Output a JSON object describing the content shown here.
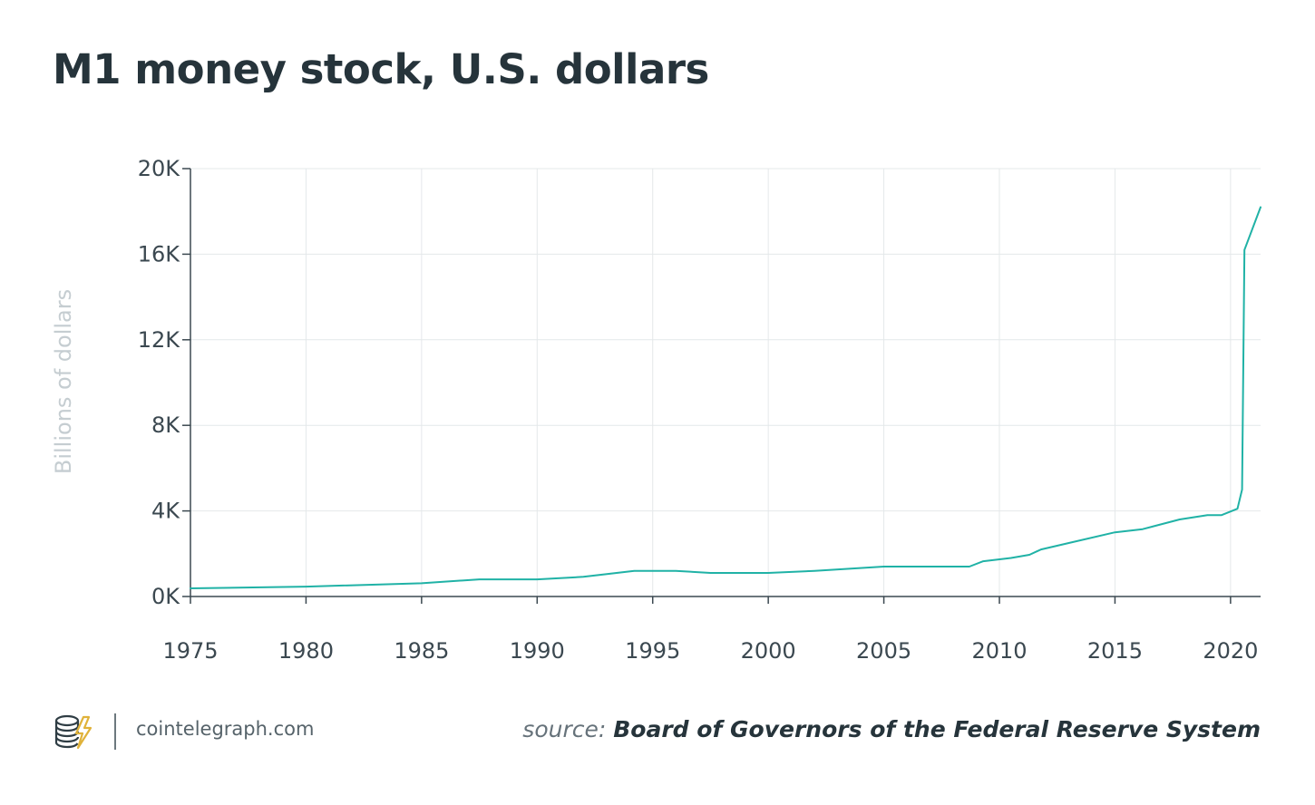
{
  "title": "M1 money stock, U.S. dollars",
  "footer": {
    "site": "cointelegraph.com",
    "source_prefix": "source:",
    "source_name": "Board of Governors of the Federal Reserve System"
  },
  "logo_icon": "cointelegraph-coin-bolt-icon",
  "colors": {
    "line": "#20b2a6",
    "axis": "#3b4850",
    "grid": "#e4e8ea",
    "title": "#26343b",
    "logo_accent": "#f2c94c"
  },
  "chart_data": {
    "type": "line",
    "title": "M1 money stock, U.S. dollars",
    "xlabel": "",
    "ylabel": "Billions of dollars",
    "xlim": [
      1975,
      2021.3
    ],
    "ylim": [
      0,
      20000
    ],
    "x_ticks": [
      1975,
      1980,
      1985,
      1990,
      1995,
      2000,
      2005,
      2010,
      2015,
      2020
    ],
    "x_tick_labels": [
      "1975",
      "1980",
      "1985",
      "1990",
      "1995",
      "2000",
      "2005",
      "2010",
      "2015",
      "2020"
    ],
    "y_ticks": [
      0,
      4000,
      8000,
      12000,
      16000,
      20000
    ],
    "y_tick_labels": [
      "0K",
      "4K",
      "8K",
      "12K",
      "16K",
      "20K"
    ],
    "grid": true,
    "series": [
      {
        "x": [
          1975,
          1980,
          1985,
          1987.5,
          1990,
          1992,
          1994.2,
          1996,
          1997.5,
          2000,
          2002,
          2005,
          2007,
          2008.7,
          2009.3,
          2010.5,
          2011.3,
          2011.8,
          2013,
          2015,
          2016.2,
          2017.8,
          2019,
          2019.6,
          2020.3,
          2020.5,
          2020.6,
          2021.3
        ],
        "y": [
          380,
          460,
          620,
          800,
          800,
          920,
          1200,
          1200,
          1100,
          1100,
          1200,
          1400,
          1400,
          1400,
          1650,
          1800,
          1950,
          2200,
          2500,
          3000,
          3150,
          3600,
          3800,
          3800,
          4100,
          5000,
          16200,
          18200
        ]
      }
    ]
  }
}
